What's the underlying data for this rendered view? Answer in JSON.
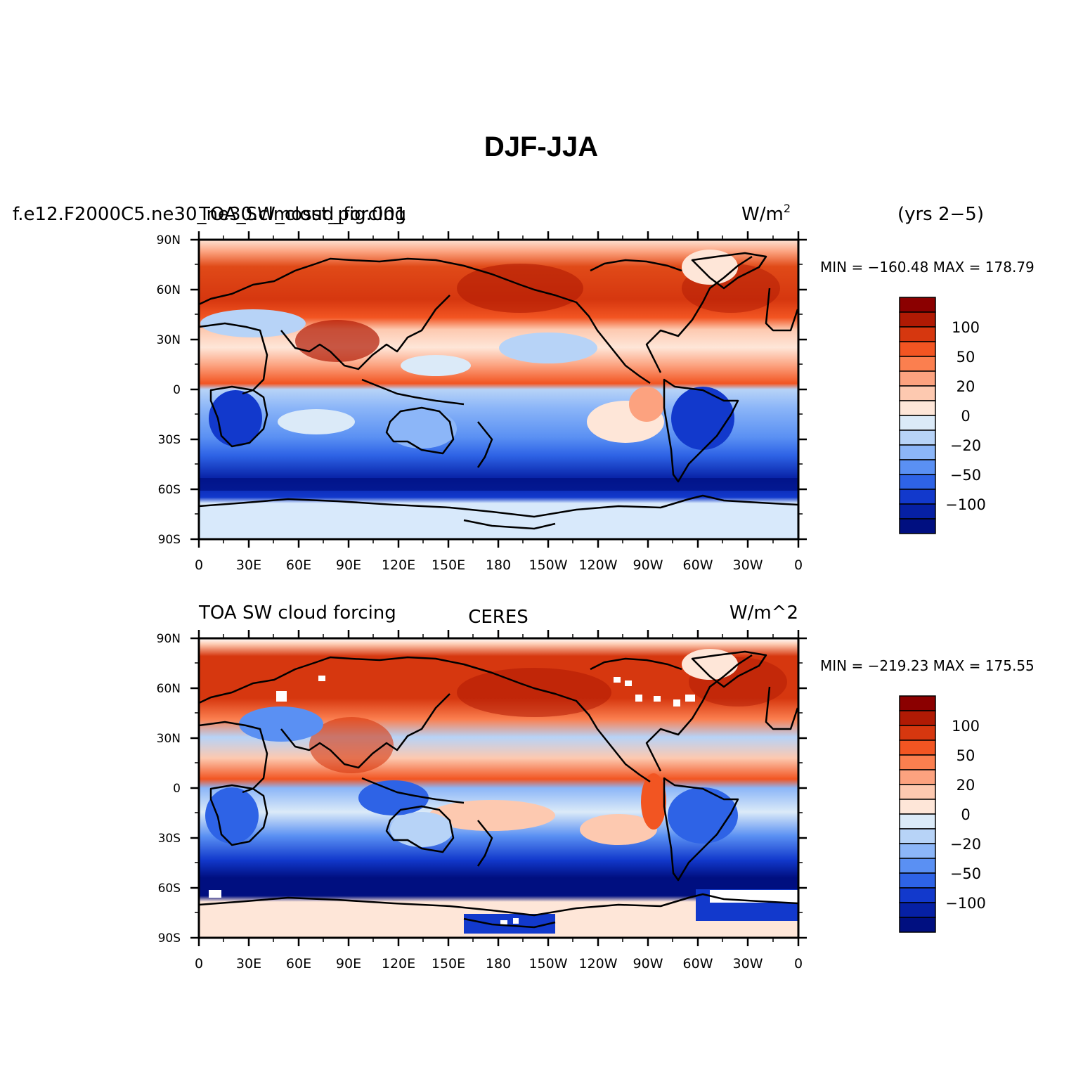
{
  "figure": {
    "title": "DJF-JJA"
  },
  "chart_data": [
    {
      "type": "heatmap",
      "left_title": "TOA_SW_cloud_forcing",
      "overlap_title": "f.e12.F2000C5.ne30_ne30.clmosst_pig.001",
      "units": "W/m",
      "units_superscript": "2",
      "right_title": "(yrs 2−5)",
      "stats": "MIN = −160.48  MAX = 178.79",
      "min": -160.48,
      "max": 178.79,
      "x_ticks": [
        "0",
        "30E",
        "60E",
        "90E",
        "120E",
        "150E",
        "180",
        "150W",
        "120W",
        "90W",
        "60W",
        "30W",
        "0"
      ],
      "y_ticks": [
        "90N",
        "60N",
        "30N",
        "0",
        "30S",
        "60S",
        "90S"
      ],
      "xlim": [
        0,
        360
      ],
      "ylim": [
        -90,
        90
      ],
      "colorbar": {
        "levels": [
          -150,
          -125,
          -100,
          -75,
          -50,
          -35,
          -20,
          -10,
          0,
          10,
          20,
          35,
          50,
          75,
          100,
          125,
          150
        ],
        "labeled_levels": [
          "100",
          "50",
          "20",
          "0",
          "−20",
          "−50",
          "−100"
        ],
        "colors": [
          "#8b0000",
          "#b01a04",
          "#d6370f",
          "#f25522",
          "#fb7f4f",
          "#fca27f",
          "#fdc9b0",
          "#fee6d8",
          "#dbeaf8",
          "#b7d3f7",
          "#8cb6f8",
          "#5a90f3",
          "#2e63e6",
          "#1239cc",
          "#0620a4",
          "#000f80"
        ]
      }
    },
    {
      "type": "heatmap",
      "left_title": "TOA SW cloud forcing",
      "center_title": "CERES",
      "units": "W/m^2",
      "stats": "MIN = −219.23  MAX = 175.55",
      "min": -219.23,
      "max": 175.55,
      "x_ticks": [
        "0",
        "30E",
        "60E",
        "90E",
        "120E",
        "150E",
        "180",
        "150W",
        "120W",
        "90W",
        "60W",
        "30W",
        "0"
      ],
      "y_ticks": [
        "90N",
        "60N",
        "30N",
        "0",
        "30S",
        "60S",
        "90S"
      ],
      "xlim": [
        0,
        360
      ],
      "ylim": [
        -90,
        90
      ],
      "colorbar": {
        "levels": [
          -150,
          -125,
          -100,
          -75,
          -50,
          -35,
          -20,
          -10,
          0,
          10,
          20,
          35,
          50,
          75,
          100,
          125,
          150
        ],
        "labeled_levels": [
          "100",
          "50",
          "20",
          "0",
          "−20",
          "−50",
          "−100"
        ],
        "colors": [
          "#8b0000",
          "#b01a04",
          "#d6370f",
          "#f25522",
          "#fb7f4f",
          "#fca27f",
          "#fdc9b0",
          "#fee6d8",
          "#dbeaf8",
          "#b7d3f7",
          "#8cb6f8",
          "#5a90f3",
          "#2e63e6",
          "#1239cc",
          "#0620a4",
          "#000f80"
        ]
      }
    }
  ]
}
